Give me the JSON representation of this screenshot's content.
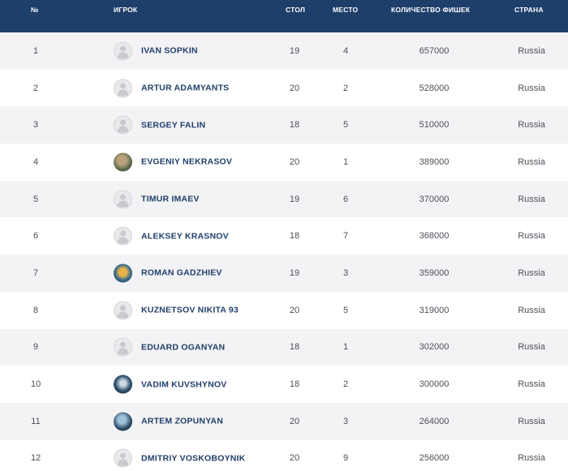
{
  "header": {
    "num": "№",
    "player": "ИГРОК",
    "table": "СТОЛ",
    "place": "МЕСТО",
    "chips": "КОЛИЧЕСТВО ФИШЕК",
    "country": "СТРАНА"
  },
  "rows": [
    {
      "num": "1",
      "name": "IVAN SOPKIN",
      "table": "19",
      "place": "4",
      "chips": "657000",
      "country": "Russia",
      "avatar": "placeholder-avatar-icon"
    },
    {
      "num": "2",
      "name": "ARTUR ADAMYANTS",
      "table": "20",
      "place": "2",
      "chips": "528000",
      "country": "Russia",
      "avatar": "placeholder-avatar-icon"
    },
    {
      "num": "3",
      "name": "SERGEY FALIN",
      "table": "18",
      "place": "5",
      "chips": "510000",
      "country": "Russia",
      "avatar": "placeholder-avatar-icon"
    },
    {
      "num": "4",
      "name": "EVGENIY NEKRASOV",
      "table": "20",
      "place": "1",
      "chips": "389000",
      "country": "Russia",
      "avatar": "photo-avatar"
    },
    {
      "num": "5",
      "name": "TIMUR IMAEV",
      "table": "19",
      "place": "6",
      "chips": "370000",
      "country": "Russia",
      "avatar": "placeholder-avatar-icon"
    },
    {
      "num": "6",
      "name": "ALEKSEY KRASNOV",
      "table": "18",
      "place": "7",
      "chips": "368000",
      "country": "Russia",
      "avatar": "placeholder-avatar-icon"
    },
    {
      "num": "7",
      "name": "ROMAN GADZHIEV",
      "table": "19",
      "place": "3",
      "chips": "359000",
      "country": "Russia",
      "avatar": "photo-avatar"
    },
    {
      "num": "8",
      "name": "KUZNETSOV NIKITA 93",
      "table": "20",
      "place": "5",
      "chips": "319000",
      "country": "Russia",
      "avatar": "placeholder-avatar-icon"
    },
    {
      "num": "9",
      "name": "EDUARD OGANYAN",
      "table": "18",
      "place": "1",
      "chips": "302000",
      "country": "Russia",
      "avatar": "placeholder-avatar-icon"
    },
    {
      "num": "10",
      "name": "VADIM KUVSHYNOV",
      "table": "18",
      "place": "2",
      "chips": "300000",
      "country": "Russia",
      "avatar": "photo-avatar"
    },
    {
      "num": "11",
      "name": "ARTEM ZOPUNYAN",
      "table": "20",
      "place": "3",
      "chips": "264000",
      "country": "Russia",
      "avatar": "photo-avatar"
    },
    {
      "num": "12",
      "name": "DMITRIY VOSKOBOYNIK",
      "table": "20",
      "place": "9",
      "chips": "256000",
      "country": "Russia",
      "avatar": "placeholder-avatar-icon"
    }
  ],
  "colors": {
    "header_bg": "#1f3f6b",
    "player_name": "#1f3f6b",
    "row_alt_bg": "#f3f3f5",
    "text": "#4a4f57"
  }
}
